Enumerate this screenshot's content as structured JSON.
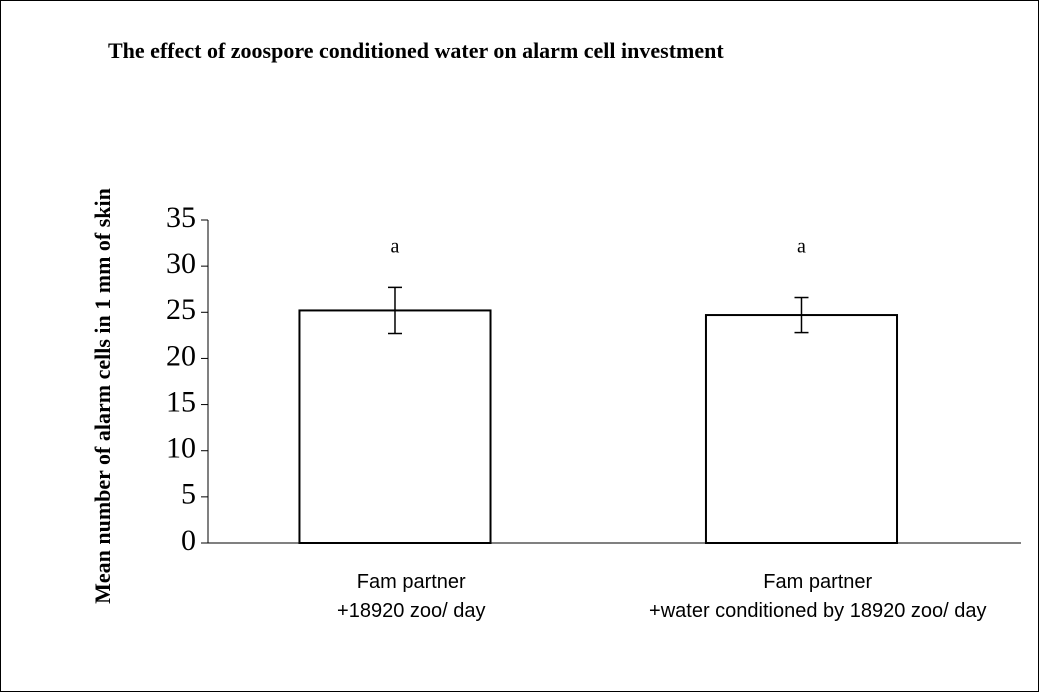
{
  "chart_data": {
    "type": "bar",
    "title": "The effect of zoospore conditioned water on alarm cell investment",
    "y_label": "Mean number of alarm cells in 1 mm of skin",
    "categories": [
      "Fam partner\n+18920 zoo/ day",
      "Fam partner\n+water conditioned by 18920 zoo/ day"
    ],
    "values": [
      25.2,
      24.7
    ],
    "errors": [
      2.5,
      1.9
    ],
    "annotations": [
      "a",
      "a"
    ],
    "color": "#ffffff",
    "ylim": [
      0,
      35
    ],
    "yticks": [
      0,
      5,
      10,
      15,
      20,
      25,
      30,
      35
    ],
    "grid": false
  }
}
